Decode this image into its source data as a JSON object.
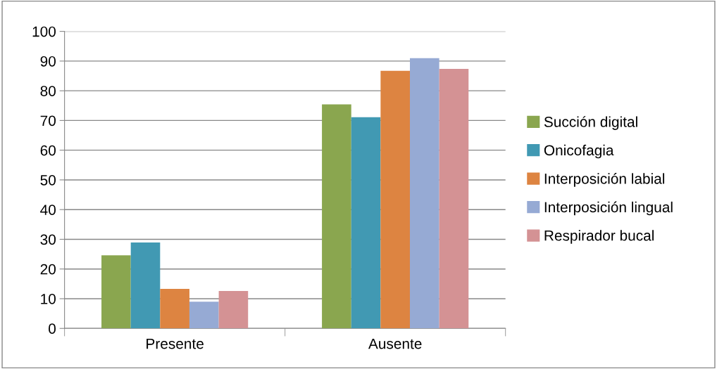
{
  "chart_data": {
    "type": "bar",
    "categories": [
      "Presente",
      "Ausente"
    ],
    "series": [
      {
        "name": "Succión digital",
        "color": "#8aa64f",
        "values": [
          24.6,
          75.4
        ]
      },
      {
        "name": "Onicofagia",
        "color": "#4199b3",
        "values": [
          28.9,
          71.1
        ]
      },
      {
        "name": "Interposición labial",
        "color": "#dd8441",
        "values": [
          13.3,
          86.7
        ]
      },
      {
        "name": "Interposición lingual",
        "color": "#96aad4",
        "values": [
          9.0,
          91.0
        ]
      },
      {
        "name": "Respirador bucal",
        "color": "#d49294",
        "values": [
          12.6,
          87.4
        ]
      }
    ],
    "ylim": [
      0,
      100
    ],
    "yticks": [
      0,
      10,
      20,
      30,
      40,
      50,
      60,
      70,
      80,
      90,
      100
    ],
    "grid": "y",
    "legend": "right"
  }
}
